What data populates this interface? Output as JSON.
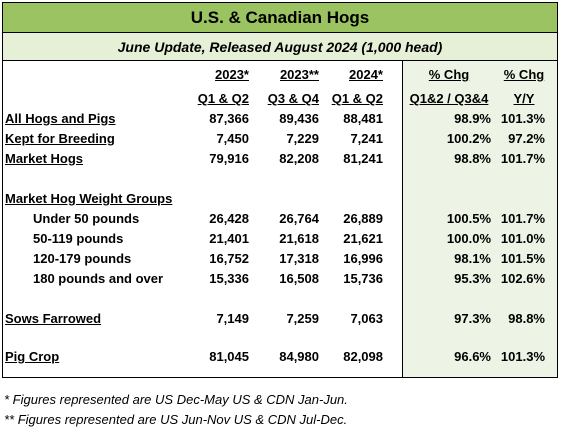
{
  "title": "U.S. & Canadian Hogs",
  "subtitle": "June Update, Released August 2024 (1,000 head)",
  "headers": {
    "top": [
      "2023*",
      "2023**",
      "2024*",
      "% Chg",
      "% Chg"
    ],
    "bottom": [
      "Q1 & Q2",
      "Q3 & Q4",
      "Q1 & Q2",
      "Q1&2 / Q3&4",
      "Y/Y"
    ]
  },
  "rows": [
    {
      "label": "All Hogs and Pigs",
      "values": [
        "87,366",
        "89,436",
        "88,481",
        "98.9%",
        "101.3%"
      ]
    },
    {
      "label": "Kept for Breeding",
      "values": [
        "7,450",
        "7,229",
        "7,241",
        "100.2%",
        "97.2%"
      ]
    },
    {
      "label": "Market Hogs",
      "values": [
        "79,916",
        "82,208",
        "81,241",
        "98.8%",
        "101.7%"
      ]
    },
    {
      "label": "Market Hog Weight Groups",
      "values": []
    },
    {
      "label": "Under 50 pounds",
      "values": [
        "26,428",
        "26,764",
        "26,889",
        "100.5%",
        "101.7%"
      ]
    },
    {
      "label": "50-119 pounds",
      "values": [
        "21,401",
        "21,618",
        "21,621",
        "100.0%",
        "101.0%"
      ]
    },
    {
      "label": "120-179 pounds",
      "values": [
        "16,752",
        "17,318",
        "16,996",
        "98.1%",
        "101.5%"
      ]
    },
    {
      "label": "180 pounds and over",
      "values": [
        "15,336",
        "16,508",
        "15,736",
        "95.3%",
        "102.6%"
      ]
    },
    {
      "label": "Sows Farrowed",
      "values": [
        "7,149",
        "7,259",
        "7,063",
        "97.3%",
        "98.8%"
      ]
    },
    {
      "label": "Pig Crop",
      "values": [
        "81,045",
        "84,980",
        "82,098",
        "96.6%",
        "101.3%"
      ]
    }
  ],
  "footnotes": [
    "* Figures represented are US Dec-May US & CDN Jan-Jun.",
    "** Figures represented are US Jun-Nov US & CDN Jul-Dec."
  ]
}
